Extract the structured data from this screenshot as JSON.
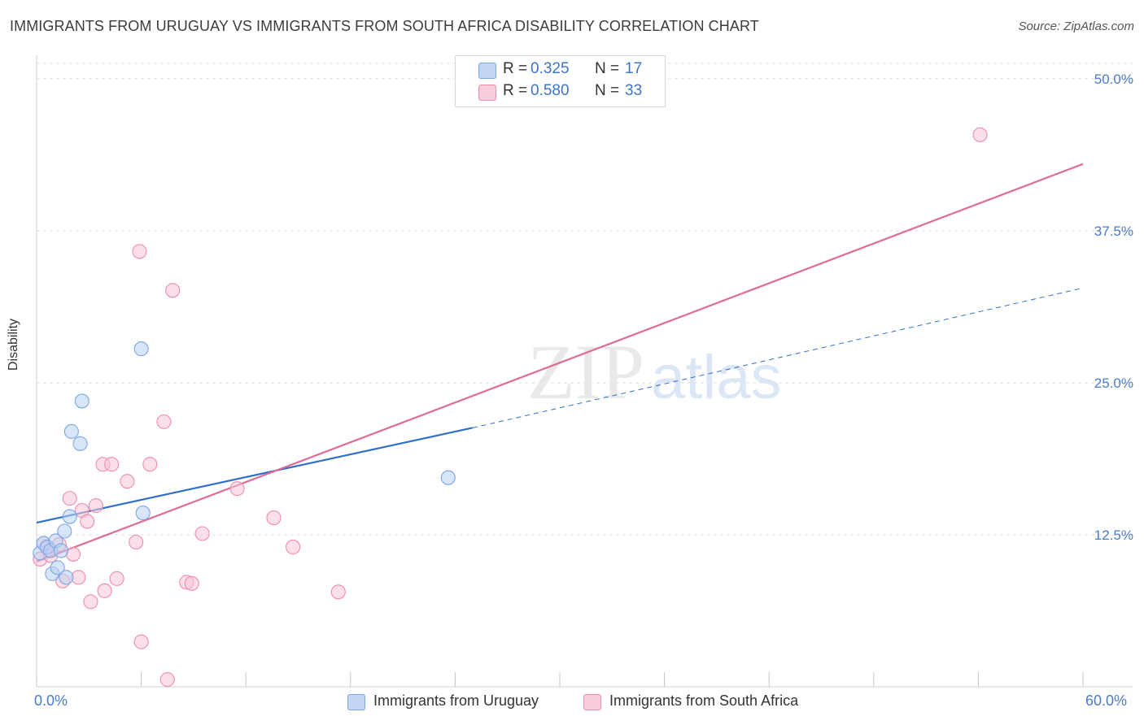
{
  "chart_data": {
    "type": "scatter",
    "title": "IMMIGRANTS FROM URUGUAY VS IMMIGRANTS FROM SOUTH AFRICA DISABILITY CORRELATION CHART",
    "source": "Source: ZipAtlas.com",
    "ylabel": "Disability",
    "xlim": [
      0,
      60
    ],
    "ylim": [
      0,
      50
    ],
    "x_tick_labels": [
      "0.0%",
      "60.0%"
    ],
    "y_ticks": [
      12.5,
      25.0,
      37.5,
      50.0
    ],
    "y_tick_labels": [
      "12.5%",
      "25.0%",
      "37.5%",
      "50.0%"
    ],
    "watermark": "ZIPatlas",
    "series": [
      {
        "name": "Immigrants from Uruguay",
        "color": "#7aa6e6",
        "fill": "#b9d0f2",
        "line_color": "#2f6fcc",
        "R": "0.325",
        "N": "17",
        "points": [
          [
            0.2,
            11.0
          ],
          [
            0.4,
            11.8
          ],
          [
            0.6,
            11.5
          ],
          [
            0.8,
            11.2
          ],
          [
            0.9,
            9.3
          ],
          [
            1.1,
            12.0
          ],
          [
            1.2,
            9.8
          ],
          [
            1.4,
            11.2
          ],
          [
            1.6,
            12.8
          ],
          [
            1.7,
            9.0
          ],
          [
            1.9,
            14.0
          ],
          [
            2.0,
            21.0
          ],
          [
            2.5,
            20.0
          ],
          [
            2.6,
            23.5
          ],
          [
            6.0,
            27.8
          ],
          [
            6.1,
            14.3
          ],
          [
            23.6,
            17.2
          ]
        ],
        "trend": {
          "x0": 0,
          "y0": 13.5,
          "x1": 25,
          "y1": 21.3,
          "dash_x1": 60,
          "dash_y1": 32.8
        }
      },
      {
        "name": "Immigrants from South Africa",
        "color": "#f08cab",
        "fill": "#f8c6d6",
        "line_color": "#e06b94",
        "R": "0.580",
        "N": "33",
        "points": [
          [
            0.2,
            10.5
          ],
          [
            0.4,
            11.8
          ],
          [
            0.6,
            11.4
          ],
          [
            0.8,
            10.8
          ],
          [
            1.3,
            11.7
          ],
          [
            1.5,
            8.7
          ],
          [
            1.9,
            15.5
          ],
          [
            2.1,
            10.9
          ],
          [
            2.4,
            9.0
          ],
          [
            2.6,
            14.5
          ],
          [
            2.9,
            13.6
          ],
          [
            3.1,
            7.0
          ],
          [
            3.4,
            14.9
          ],
          [
            3.8,
            18.3
          ],
          [
            3.9,
            7.9
          ],
          [
            4.3,
            18.3
          ],
          [
            4.6,
            8.9
          ],
          [
            5.2,
            16.9
          ],
          [
            5.7,
            11.9
          ],
          [
            5.9,
            35.8
          ],
          [
            6.0,
            3.7
          ],
          [
            6.5,
            18.3
          ],
          [
            7.3,
            21.8
          ],
          [
            7.5,
            0.6
          ],
          [
            7.8,
            32.6
          ],
          [
            8.6,
            8.6
          ],
          [
            8.9,
            8.5
          ],
          [
            9.5,
            12.6
          ],
          [
            11.5,
            16.3
          ],
          [
            13.6,
            13.9
          ],
          [
            14.7,
            11.5
          ],
          [
            17.3,
            7.8
          ],
          [
            54.1,
            45.4
          ]
        ],
        "trend": {
          "x0": 0,
          "y0": 10.3,
          "x1": 60,
          "y1": 43.0
        }
      }
    ]
  }
}
